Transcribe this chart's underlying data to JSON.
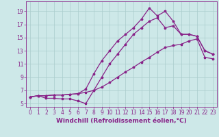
{
  "background_color": "#cde8e8",
  "grid_color": "#aacccc",
  "line_color": "#882288",
  "xlabel": "Windchill (Refroidissement éolien,°C)",
  "xlabel_fontsize": 6.5,
  "tick_fontsize": 5.5,
  "xlim": [
    -0.5,
    23.5
  ],
  "ylim": [
    4.5,
    20.5
  ],
  "yticks": [
    5,
    7,
    9,
    11,
    13,
    15,
    17,
    19
  ],
  "xticks": [
    0,
    1,
    2,
    3,
    4,
    5,
    6,
    7,
    8,
    9,
    10,
    11,
    12,
    13,
    14,
    15,
    16,
    17,
    18,
    19,
    20,
    21,
    22,
    23
  ],
  "series1_x": [
    0,
    1,
    2,
    3,
    4,
    5,
    6,
    7,
    8,
    9,
    10,
    11,
    12,
    13,
    14,
    15,
    16,
    17,
    18,
    19,
    20,
    21,
    22,
    23
  ],
  "series1_y": [
    6.0,
    6.2,
    6.2,
    6.3,
    6.3,
    6.4,
    6.5,
    7.2,
    9.5,
    11.5,
    13.0,
    14.5,
    15.5,
    16.5,
    17.8,
    19.5,
    18.3,
    19.0,
    17.5,
    15.5,
    15.5,
    15.2,
    13.0,
    12.5
  ],
  "series2_x": [
    0,
    1,
    2,
    3,
    4,
    5,
    6,
    7,
    8,
    9,
    10,
    11,
    12,
    13,
    14,
    15,
    16,
    17,
    18,
    19,
    20,
    21,
    22,
    23
  ],
  "series2_y": [
    6.0,
    6.2,
    5.8,
    5.8,
    5.7,
    5.7,
    5.4,
    5.0,
    7.0,
    9.0,
    11.0,
    12.5,
    14.0,
    15.5,
    16.5,
    17.5,
    18.0,
    16.5,
    16.8,
    15.5,
    15.5,
    15.2,
    13.0,
    12.5
  ],
  "series3_x": [
    0,
    1,
    2,
    3,
    4,
    5,
    6,
    7,
    8,
    9,
    10,
    11,
    12,
    13,
    14,
    15,
    16,
    17,
    18,
    19,
    20,
    21,
    22,
    23
  ],
  "series3_y": [
    6.0,
    6.2,
    6.2,
    6.3,
    6.3,
    6.4,
    6.5,
    6.7,
    7.0,
    7.5,
    8.2,
    9.0,
    9.8,
    10.5,
    11.3,
    12.0,
    12.8,
    13.5,
    13.8,
    14.0,
    14.5,
    14.8,
    12.0,
    11.8
  ]
}
